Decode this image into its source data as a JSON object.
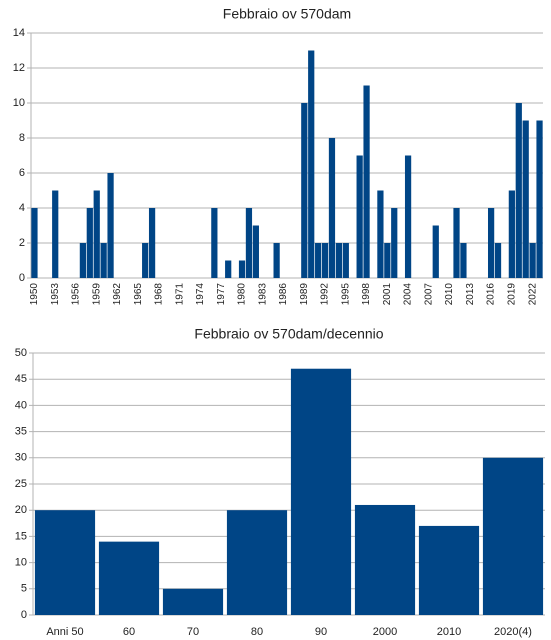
{
  "chart_data": [
    {
      "type": "bar",
      "title": "Febbraio ov 570dam",
      "color": "#004586",
      "categories": [
        "1950",
        null,
        null,
        "1953",
        null,
        null,
        "1956",
        null,
        null,
        "1959",
        null,
        null,
        "1962",
        null,
        null,
        "1965",
        null,
        null,
        "1968",
        null,
        null,
        "1971",
        null,
        null,
        "1974",
        null,
        null,
        "1977",
        null,
        null,
        "1980",
        null,
        null,
        "1983",
        null,
        null,
        "1986",
        null,
        null,
        "1989",
        null,
        null,
        "1992",
        null,
        null,
        "1995",
        null,
        null,
        "1998",
        null,
        null,
        "2001",
        null,
        null,
        "2004",
        null,
        null,
        "2007",
        null,
        null,
        "2010",
        null,
        null,
        "2013",
        null,
        null,
        "2016",
        null,
        null,
        "2019",
        null,
        null,
        "2022",
        null
      ],
      "values": [
        4,
        0,
        0,
        5,
        0,
        0,
        0,
        2,
        4,
        5,
        2,
        6,
        0,
        0,
        0,
        0,
        2,
        4,
        0,
        0,
        0,
        0,
        0,
        0,
        0,
        0,
        4,
        0,
        1,
        0,
        1,
        4,
        3,
        0,
        0,
        2,
        0,
        0,
        0,
        10,
        13,
        2,
        2,
        8,
        2,
        2,
        0,
        7,
        11,
        0,
        5,
        2,
        4,
        0,
        7,
        0,
        0,
        0,
        3,
        0,
        0,
        4,
        2,
        0,
        0,
        0,
        4,
        2,
        0,
        5,
        10,
        9,
        2,
        9
      ],
      "ylim": [
        0,
        14
      ],
      "yticks": [
        0,
        2,
        4,
        6,
        8,
        10,
        12,
        14
      ],
      "grid": true
    },
    {
      "type": "bar",
      "title": "Febbraio ov 570dam/decennio",
      "color": "#004586",
      "categories": [
        "Anni 50",
        "60",
        "70",
        "80",
        "90",
        "2000",
        "2010",
        "2020(4)"
      ],
      "values": [
        20,
        14,
        5,
        20,
        47,
        21,
        17,
        30
      ],
      "ylim": [
        0,
        50
      ],
      "yticks": [
        0,
        5,
        10,
        15,
        20,
        25,
        30,
        35,
        40,
        45,
        50
      ],
      "grid": true
    }
  ]
}
